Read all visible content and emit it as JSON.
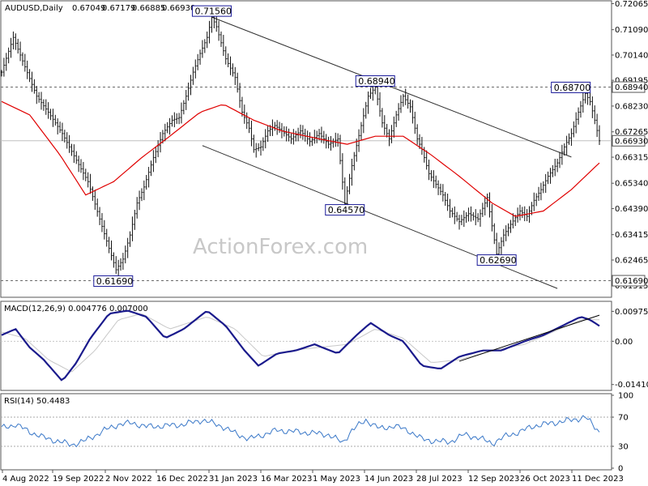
{
  "chart_data": [
    {
      "panel": "price",
      "type": "line",
      "title": "AUDUSD,Daily",
      "ohlc": {
        "open": "0.67049",
        "high": "0.67179",
        "low": "0.66885",
        "close": "0.66930"
      },
      "watermark": "ActionForex.com",
      "ylim": [
        0.611,
        0.7208
      ],
      "y_ticks": [
        "0.72065",
        "0.71090",
        "0.70140",
        "0.69195",
        "0.68230",
        "0.67265",
        "0.66315",
        "0.65340",
        "0.64390",
        "0.63415",
        "0.62465",
        "0.61515"
      ],
      "x_ticks": [
        "4 Aug 2022",
        "19 Sep 2022",
        "2 Nov 2022",
        "16 Dec 2022",
        "31 Jan 2023",
        "16 Mar 2023",
        "1 May 2023",
        "14 Jun 2023",
        "28 Jul 2023",
        "12 Sep 2023",
        "26 Oct 2023",
        "11 Dec 2023"
      ],
      "price_path": [
        [
          0,
          0.695
        ],
        [
          5,
          0.708
        ],
        [
          10,
          0.697
        ],
        [
          15,
          0.686
        ],
        [
          20,
          0.68
        ],
        [
          26,
          0.672
        ],
        [
          32,
          0.662
        ],
        [
          37,
          0.654
        ],
        [
          42,
          0.64
        ],
        [
          46,
          0.629
        ],
        [
          49,
          0.621
        ],
        [
          52,
          0.625
        ],
        [
          55,
          0.634
        ],
        [
          58,
          0.646
        ],
        [
          61,
          0.652
        ],
        [
          65,
          0.663
        ],
        [
          69,
          0.672
        ],
        [
          73,
          0.677
        ],
        [
          76,
          0.678
        ],
        [
          79,
          0.686
        ],
        [
          82,
          0.695
        ],
        [
          85,
          0.702
        ],
        [
          88,
          0.708
        ],
        [
          90,
          0.7156
        ],
        [
          92,
          0.712
        ],
        [
          96,
          0.7
        ],
        [
          100,
          0.693
        ],
        [
          103,
          0.68
        ],
        [
          106,
          0.674
        ],
        [
          108,
          0.666
        ],
        [
          111,
          0.667
        ],
        [
          114,
          0.673
        ],
        [
          117,
          0.675
        ],
        [
          120,
          0.673
        ],
        [
          124,
          0.67
        ],
        [
          128,
          0.673
        ],
        [
          132,
          0.669
        ],
        [
          136,
          0.672
        ],
        [
          140,
          0.668
        ],
        [
          144,
          0.67
        ],
        [
          147,
          0.6457
        ],
        [
          150,
          0.66
        ],
        [
          154,
          0.675
        ],
        [
          157,
          0.686
        ],
        [
          160,
          0.6894
        ],
        [
          163,
          0.676
        ],
        [
          166,
          0.67
        ],
        [
          169,
          0.679
        ],
        [
          172,
          0.686
        ],
        [
          175,
          0.682
        ],
        [
          178,
          0.67
        ],
        [
          180,
          0.666
        ],
        [
          183,
          0.657
        ],
        [
          186,
          0.653
        ],
        [
          189,
          0.649
        ],
        [
          192,
          0.643
        ],
        [
          196,
          0.639
        ],
        [
          200,
          0.642
        ],
        [
          204,
          0.64
        ],
        [
          208,
          0.648
        ],
        [
          212,
          0.6269
        ],
        [
          215,
          0.634
        ],
        [
          218,
          0.638
        ],
        [
          222,
          0.643
        ],
        [
          225,
          0.641
        ],
        [
          228,
          0.647
        ],
        [
          231,
          0.651
        ],
        [
          234,
          0.656
        ],
        [
          238,
          0.661
        ],
        [
          241,
          0.667
        ],
        [
          244,
          0.672
        ],
        [
          247,
          0.68
        ],
        [
          250,
          0.687
        ],
        [
          252,
          0.684
        ],
        [
          254,
          0.677
        ],
        [
          256,
          0.6693
        ]
      ],
      "series": [
        {
          "name": "",
          "role": "ma",
          "color": "#e00000",
          "values": [
            [
              0,
              0.684
            ],
            [
              12,
              0.679
            ],
            [
              25,
              0.664
            ],
            [
              36,
              0.649
            ],
            [
              48,
              0.654
            ],
            [
              60,
              0.663
            ],
            [
              72,
              0.671
            ],
            [
              85,
              0.68
            ],
            [
              95,
              0.683
            ],
            [
              108,
              0.677
            ],
            [
              120,
              0.673
            ],
            [
              136,
              0.67
            ],
            [
              148,
              0.668
            ],
            [
              160,
              0.671
            ],
            [
              172,
              0.671
            ],
            [
              184,
              0.664
            ],
            [
              196,
              0.656
            ],
            [
              210,
              0.646
            ],
            [
              220,
              0.641
            ],
            [
              232,
              0.643
            ],
            [
              244,
              0.651
            ],
            [
              256,
              0.661
            ]
          ]
        }
      ],
      "trendlines": [
        {
          "from": [
            90,
            0.7156
          ],
          "to": [
            244,
            0.6632
          ]
        },
        {
          "from": [
            86,
            0.6675
          ],
          "to": [
            238,
            0.614
          ]
        }
      ],
      "hlines": [
        0.6894,
        0.6169
      ],
      "hline_color": "#6a6a6a",
      "current_line": 0.6693,
      "annotations": [
        {
          "label": "0.71560",
          "x": 90,
          "y": 0.7156
        },
        {
          "label": "0.68940",
          "x": 160,
          "y": 0.6894
        },
        {
          "label": "0.64570",
          "x": 147,
          "y": 0.6457
        },
        {
          "label": "0.62690",
          "x": 212,
          "y": 0.6269
        },
        {
          "label": "0.61690",
          "x": 36,
          "y": 0.6169
        },
        {
          "label": "0.68700",
          "x": 250,
          "y": 0.687
        }
      ],
      "axis_labels": [
        {
          "label": "0.68940",
          "y": 0.6894,
          "boxed": true
        },
        {
          "label": "0.66930",
          "y": 0.6693,
          "boxed": true
        },
        {
          "label": "0.61690",
          "y": 0.6169,
          "boxed": true
        }
      ]
    },
    {
      "panel": "macd",
      "type": "line",
      "title": "MACD(12,26,9) 0.004776 0.007000",
      "ylim": [
        -0.0155,
        0.0125
      ],
      "y_ticks": [
        "0.009751",
        "0.00",
        "-0.014107"
      ],
      "zero": 0,
      "series": [
        {
          "name": "",
          "role": "macd",
          "color": "#1a1a8c",
          "values": [
            [
              0,
              0.002
            ],
            [
              6,
              0.004
            ],
            [
              12,
              -0.002
            ],
            [
              18,
              -0.006
            ],
            [
              26,
              -0.013
            ],
            [
              32,
              -0.007
            ],
            [
              38,
              0.001
            ],
            [
              46,
              0.009
            ],
            [
              54,
              0.01
            ],
            [
              62,
              0.008
            ],
            [
              70,
              0.001
            ],
            [
              78,
              0.004
            ],
            [
              88,
              0.01
            ],
            [
              96,
              0.005
            ],
            [
              104,
              -0.003
            ],
            [
              110,
              -0.008
            ],
            [
              118,
              -0.004
            ],
            [
              126,
              -0.003
            ],
            [
              134,
              -0.001
            ],
            [
              144,
              -0.004
            ],
            [
              152,
              0.002
            ],
            [
              158,
              0.006
            ],
            [
              166,
              0.002
            ],
            [
              172,
              0.0
            ],
            [
              180,
              -0.008
            ],
            [
              188,
              -0.009
            ],
            [
              196,
              -0.005
            ],
            [
              206,
              -0.003
            ],
            [
              214,
              -0.003
            ],
            [
              224,
              0.0
            ],
            [
              232,
              0.002
            ],
            [
              240,
              0.005
            ],
            [
              248,
              0.008
            ],
            [
              252,
              0.007
            ],
            [
              256,
              0.005
            ]
          ]
        },
        {
          "name": "",
          "role": "signal",
          "color": "#c8c8c8",
          "values": [
            [
              0,
              0.003
            ],
            [
              10,
              0.001
            ],
            [
              20,
              -0.006
            ],
            [
              30,
              -0.01
            ],
            [
              40,
              -0.003
            ],
            [
              50,
              0.007
            ],
            [
              60,
              0.009
            ],
            [
              72,
              0.004
            ],
            [
              88,
              0.008
            ],
            [
              100,
              0.004
            ],
            [
              112,
              -0.005
            ],
            [
              124,
              -0.003
            ],
            [
              136,
              -0.002
            ],
            [
              148,
              -0.001
            ],
            [
              160,
              0.004
            ],
            [
              172,
              0.001
            ],
            [
              184,
              -0.007
            ],
            [
              196,
              -0.006
            ],
            [
              210,
              -0.003
            ],
            [
              224,
              -0.001
            ],
            [
              236,
              0.003
            ],
            [
              248,
              0.007
            ],
            [
              256,
              0.007
            ]
          ]
        }
      ],
      "trendlines": [
        {
          "from": [
            196,
            -0.0065
          ],
          "to": [
            256,
            0.0085
          ]
        }
      ]
    },
    {
      "panel": "rsi",
      "type": "line",
      "title": "RSI(14) 50.4483",
      "ylim": [
        0,
        100
      ],
      "y_ticks": [
        "100",
        "70",
        "30",
        "0"
      ],
      "levels": [
        70,
        30
      ],
      "series": [
        {
          "name": "",
          "role": "rsi",
          "color": "#3a78c8",
          "values": [
            [
              0,
              55
            ],
            [
              6,
              60
            ],
            [
              12,
              50
            ],
            [
              18,
              42
            ],
            [
              24,
              37
            ],
            [
              30,
              32
            ],
            [
              36,
              38
            ],
            [
              44,
              52
            ],
            [
              50,
              60
            ],
            [
              56,
              62
            ],
            [
              62,
              57
            ],
            [
              70,
              58
            ],
            [
              78,
              60
            ],
            [
              86,
              66
            ],
            [
              94,
              58
            ],
            [
              100,
              48
            ],
            [
              106,
              40
            ],
            [
              112,
              46
            ],
            [
              118,
              52
            ],
            [
              126,
              50
            ],
            [
              134,
              48
            ],
            [
              140,
              46
            ],
            [
              146,
              35
            ],
            [
              150,
              52
            ],
            [
              156,
              66
            ],
            [
              162,
              54
            ],
            [
              168,
              58
            ],
            [
              174,
              52
            ],
            [
              180,
              40
            ],
            [
              186,
              37
            ],
            [
              192,
              36
            ],
            [
              198,
              46
            ],
            [
              204,
              42
            ],
            [
              210,
              34
            ],
            [
              216,
              44
            ],
            [
              222,
              50
            ],
            [
              228,
              58
            ],
            [
              236,
              62
            ],
            [
              244,
              66
            ],
            [
              250,
              70
            ],
            [
              256,
              50
            ]
          ]
        }
      ]
    }
  ]
}
